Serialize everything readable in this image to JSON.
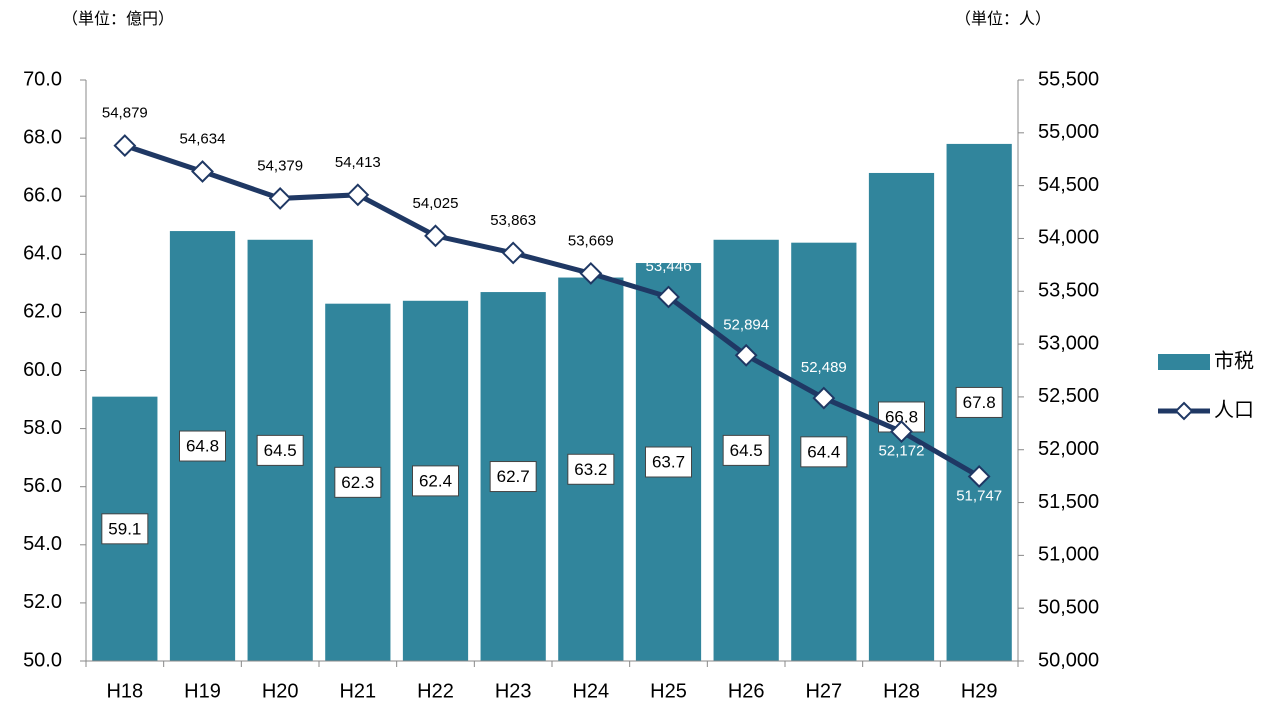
{
  "chart_data": {
    "type": "combo",
    "unit_left": "（単位：億円）",
    "unit_right": "（単位：人）",
    "categories": [
      "H18",
      "H19",
      "H20",
      "H21",
      "H22",
      "H23",
      "H24",
      "H25",
      "H26",
      "H27",
      "H28",
      "H29"
    ],
    "series": [
      {
        "name": "市税",
        "type": "bar",
        "color": "#31859c",
        "values": [
          59.1,
          64.8,
          64.5,
          62.3,
          62.4,
          62.7,
          63.2,
          63.7,
          64.5,
          64.4,
          66.8,
          67.8
        ]
      },
      {
        "name": "人口",
        "type": "line",
        "axis": "y2",
        "color": "#1f3864",
        "values": [
          54879,
          54634,
          54379,
          54413,
          54025,
          53863,
          53669,
          53446,
          52894,
          52489,
          52172,
          51747
        ],
        "value_labels": [
          "54,879",
          "54,634",
          "54,379",
          "54,413",
          "54,025",
          "53,863",
          "53,669",
          "53,446",
          "52,894",
          "52,489",
          "52,172",
          "51,747"
        ]
      }
    ],
    "ylim": [
      50,
      70
    ],
    "yticks": [
      {
        "value": 50,
        "label": "50.0"
      },
      {
        "value": 52,
        "label": "52.0"
      },
      {
        "value": 54,
        "label": "54.0"
      },
      {
        "value": 56,
        "label": "56.0"
      },
      {
        "value": 58,
        "label": "58.0"
      },
      {
        "value": 60,
        "label": "60.0"
      },
      {
        "value": 62,
        "label": "62.0"
      },
      {
        "value": 64,
        "label": "64.0"
      },
      {
        "value": 66,
        "label": "66.0"
      },
      {
        "value": 68,
        "label": "68.0"
      },
      {
        "value": 70,
        "label": "70.0"
      }
    ],
    "y2lim": [
      50000,
      55500
    ],
    "y2ticks": [
      {
        "value": 50000,
        "label": "50,000"
      },
      {
        "value": 50500,
        "label": "50,500"
      },
      {
        "value": 51000,
        "label": "51,000"
      },
      {
        "value": 51500,
        "label": "51,500"
      },
      {
        "value": 52000,
        "label": "52,000"
      },
      {
        "value": 52500,
        "label": "52,500"
      },
      {
        "value": 53000,
        "label": "53,000"
      },
      {
        "value": 53500,
        "label": "53,500"
      },
      {
        "value": 54000,
        "label": "54,000"
      },
      {
        "value": 54500,
        "label": "54,500"
      },
      {
        "value": 55000,
        "label": "55,000"
      },
      {
        "value": 55500,
        "label": "55,500"
      }
    ],
    "legend": "right"
  }
}
